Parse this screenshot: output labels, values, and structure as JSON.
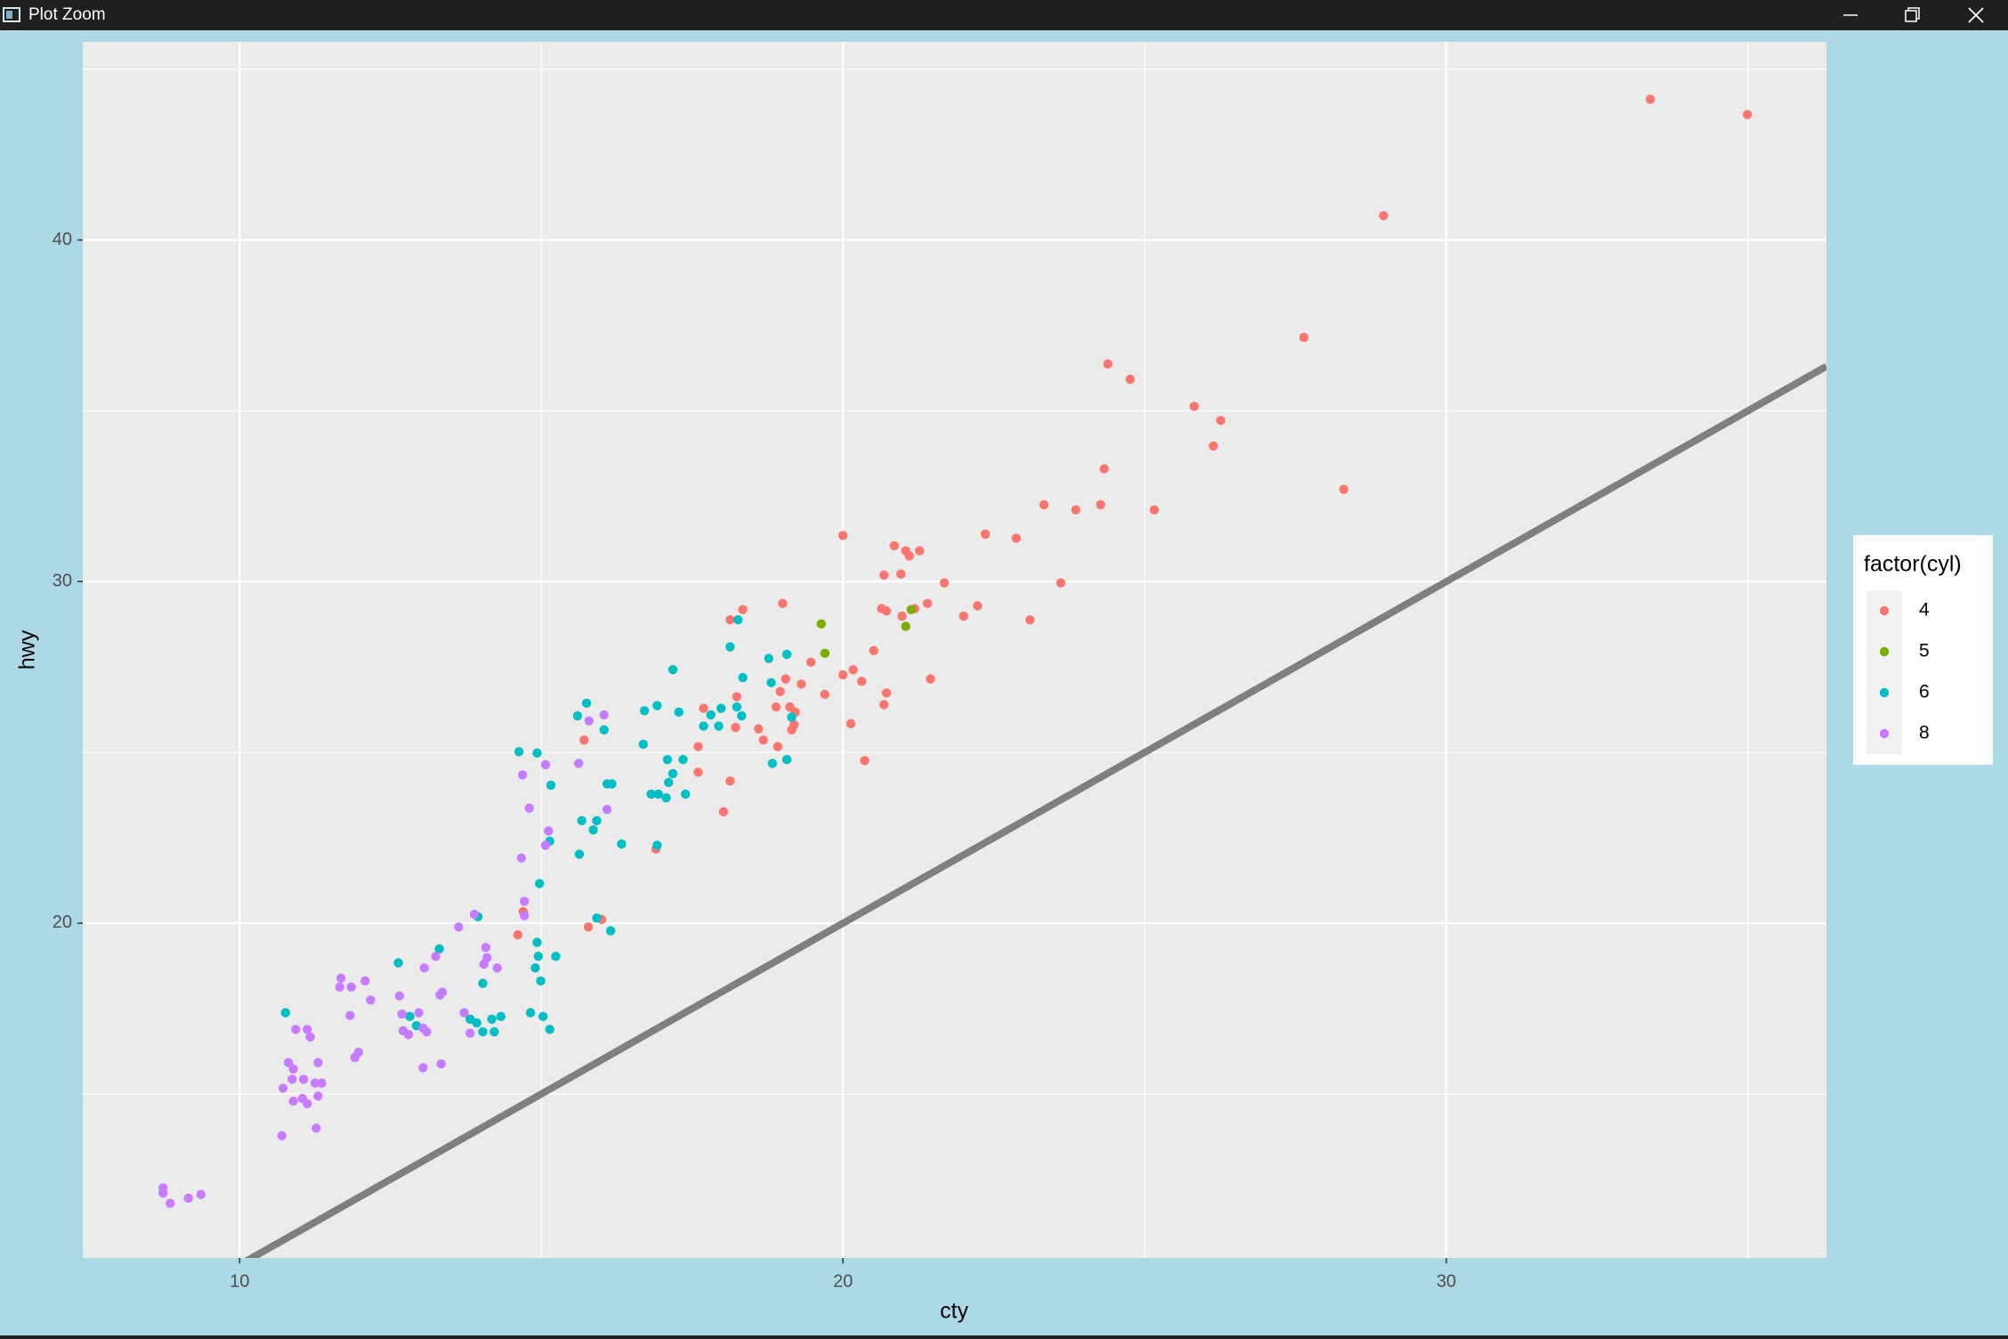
{
  "window": {
    "title": "Plot Zoom"
  },
  "chart_data": {
    "type": "scatter",
    "x_label": "cty",
    "y_label": "hwy",
    "legend_title": "factor(cyl)",
    "legend_position": "right",
    "xlim": [
      7.4,
      36.3
    ],
    "ylim": [
      10.2,
      45.8
    ],
    "xticks": [
      10,
      20,
      30
    ],
    "yticks": [
      20,
      30,
      40
    ],
    "grid": true,
    "minor_grid": true,
    "abline": {
      "intercept": 0,
      "slope": 1,
      "color": "#7f7f7f"
    },
    "series": [
      {
        "name": "4",
        "color": "#F8766D",
        "x": [
          33.38,
          34.99,
          28.96,
          27.64,
          24.39,
          24.76,
          25.82,
          26.26,
          26.14,
          24.33,
          28.3,
          23.33,
          23.86,
          24.27,
          25.16,
          22.36,
          22.87,
          20.0,
          20.85,
          21.04,
          21.27,
          21.1,
          20.68,
          20.96,
          21.68,
          23.61,
          19.0,
          20.64,
          20.72,
          21.19,
          21.4,
          22.23,
          20.98,
          22.0,
          23.1,
          18.34,
          18.13,
          19.47,
          20.51,
          21.45,
          20.17,
          20.0,
          20.31,
          19.05,
          19.31,
          19.7,
          20.72,
          20.68,
          18.96,
          18.89,
          19.12,
          19.21,
          18.24,
          17.69,
          18.22,
          18.6,
          19.19,
          19.15,
          20.13,
          18.68,
          18.92,
          17.6,
          15.71,
          20.36,
          17.6,
          18.13,
          18.02,
          16.9,
          16.0,
          15.78,
          14.61,
          14.7
        ],
        "values": [
          44.12,
          43.67,
          40.71,
          37.15,
          36.37,
          35.92,
          35.13,
          34.72,
          33.97,
          33.3,
          32.7,
          32.25,
          32.1,
          32.25,
          32.1,
          31.39,
          31.27,
          31.35,
          31.05,
          30.9,
          30.9,
          30.75,
          30.19,
          30.22,
          29.96,
          29.96,
          29.36,
          29.21,
          29.14,
          29.21,
          29.36,
          29.29,
          28.99,
          28.99,
          28.88,
          29.18,
          28.88,
          27.64,
          27.98,
          27.15,
          27.42,
          27.27,
          27.08,
          27.15,
          27.0,
          26.7,
          26.74,
          26.4,
          26.78,
          26.33,
          26.33,
          26.18,
          26.63,
          26.29,
          25.73,
          25.69,
          25.81,
          25.66,
          25.84,
          25.36,
          25.17,
          25.17,
          25.36,
          24.76,
          24.42,
          24.16,
          23.26,
          22.17,
          20.11,
          19.89,
          19.66,
          20.34
        ]
      },
      {
        "name": "5",
        "color": "#7CAE00",
        "x": [
          19.64,
          19.7,
          21.04,
          21.13
        ],
        "values": [
          28.76,
          27.9,
          28.69,
          29.18
        ]
      },
      {
        "name": "6",
        "color": "#00BFC4",
        "x": [
          18.26,
          18.13,
          19.07,
          18.77,
          17.18,
          18.34,
          18.81,
          15.75,
          15.6,
          16.04,
          16.92,
          16.71,
          17.28,
          17.81,
          17.98,
          18.24,
          18.32,
          17.69,
          17.94,
          19.15,
          16.69,
          17.09,
          17.35,
          19.07,
          18.83,
          14.63,
          14.93,
          17.18,
          17.11,
          16.09,
          16.17,
          15.16,
          16.82,
          16.94,
          17.07,
          17.39,
          15.67,
          15.92,
          15.86,
          15.14,
          16.33,
          16.92,
          15.63,
          14.97,
          15.92,
          16.15,
          13.95,
          14.93,
          15.24,
          14.95,
          14.9,
          14.99,
          13.31,
          12.63,
          14.03,
          10.76,
          12.82,
          12.93,
          13.82,
          13.93,
          14.18,
          14.33,
          14.82,
          15.03,
          14.03,
          14.22,
          15.14
        ],
        "values": [
          28.88,
          28.09,
          27.87,
          27.75,
          27.42,
          27.19,
          27.04,
          26.44,
          26.07,
          25.66,
          26.37,
          26.22,
          26.18,
          26.1,
          26.29,
          26.33,
          26.07,
          25.77,
          25.77,
          26.03,
          25.24,
          24.79,
          24.79,
          24.79,
          24.68,
          25.02,
          24.98,
          24.38,
          24.12,
          24.08,
          24.08,
          24.04,
          23.78,
          23.78,
          23.67,
          23.78,
          23.0,
          23.0,
          22.73,
          22.4,
          22.32,
          22.28,
          22.02,
          21.16,
          20.15,
          19.78,
          20.19,
          19.44,
          19.03,
          19.03,
          18.69,
          18.31,
          19.25,
          18.84,
          18.24,
          17.38,
          17.27,
          17.0,
          17.19,
          17.08,
          17.19,
          17.27,
          17.38,
          17.27,
          16.82,
          16.82,
          16.89
        ]
      },
      {
        "name": "8",
        "color": "#C77CFF",
        "x": [
          15.79,
          16.04,
          15.62,
          15.07,
          14.69,
          16.09,
          14.8,
          15.12,
          15.07,
          14.67,
          14.72,
          14.72,
          13.89,
          13.63,
          14.08,
          14.1,
          14.05,
          14.27,
          13.25,
          13.06,
          11.68,
          11.66,
          11.85,
          12.08,
          12.17,
          11.83,
          12.65,
          13.36,
          13.32,
          12.69,
          12.97,
          13.72,
          12.71,
          12.8,
          13.04,
          13.1,
          13.82,
          10.93,
          11.12,
          11.17,
          11.91,
          11.97,
          13.04,
          13.34,
          10.81,
          10.89,
          11.3,
          10.72,
          10.87,
          11.06,
          11.25,
          11.36,
          10.89,
          11.04,
          11.12,
          11.3,
          11.27,
          10.7,
          8.73,
          8.73,
          8.85,
          9.15,
          9.36
        ],
        "values": [
          25.92,
          26.1,
          24.68,
          24.64,
          24.34,
          23.33,
          23.37,
          22.7,
          22.28,
          21.91,
          20.64,
          20.22,
          20.26,
          19.89,
          19.29,
          18.99,
          18.8,
          18.69,
          19.03,
          18.69,
          18.39,
          18.13,
          18.13,
          18.31,
          17.75,
          17.3,
          17.87,
          17.98,
          17.9,
          17.34,
          17.38,
          17.38,
          16.85,
          16.74,
          16.93,
          16.82,
          16.78,
          16.89,
          16.89,
          16.67,
          16.07,
          16.22,
          15.77,
          15.88,
          15.92,
          15.73,
          15.92,
          15.17,
          15.43,
          15.43,
          15.32,
          15.32,
          14.79,
          14.87,
          14.72,
          14.94,
          14.0,
          13.78,
          12.25,
          12.1,
          11.8,
          11.95,
          12.06
        ]
      }
    ]
  }
}
